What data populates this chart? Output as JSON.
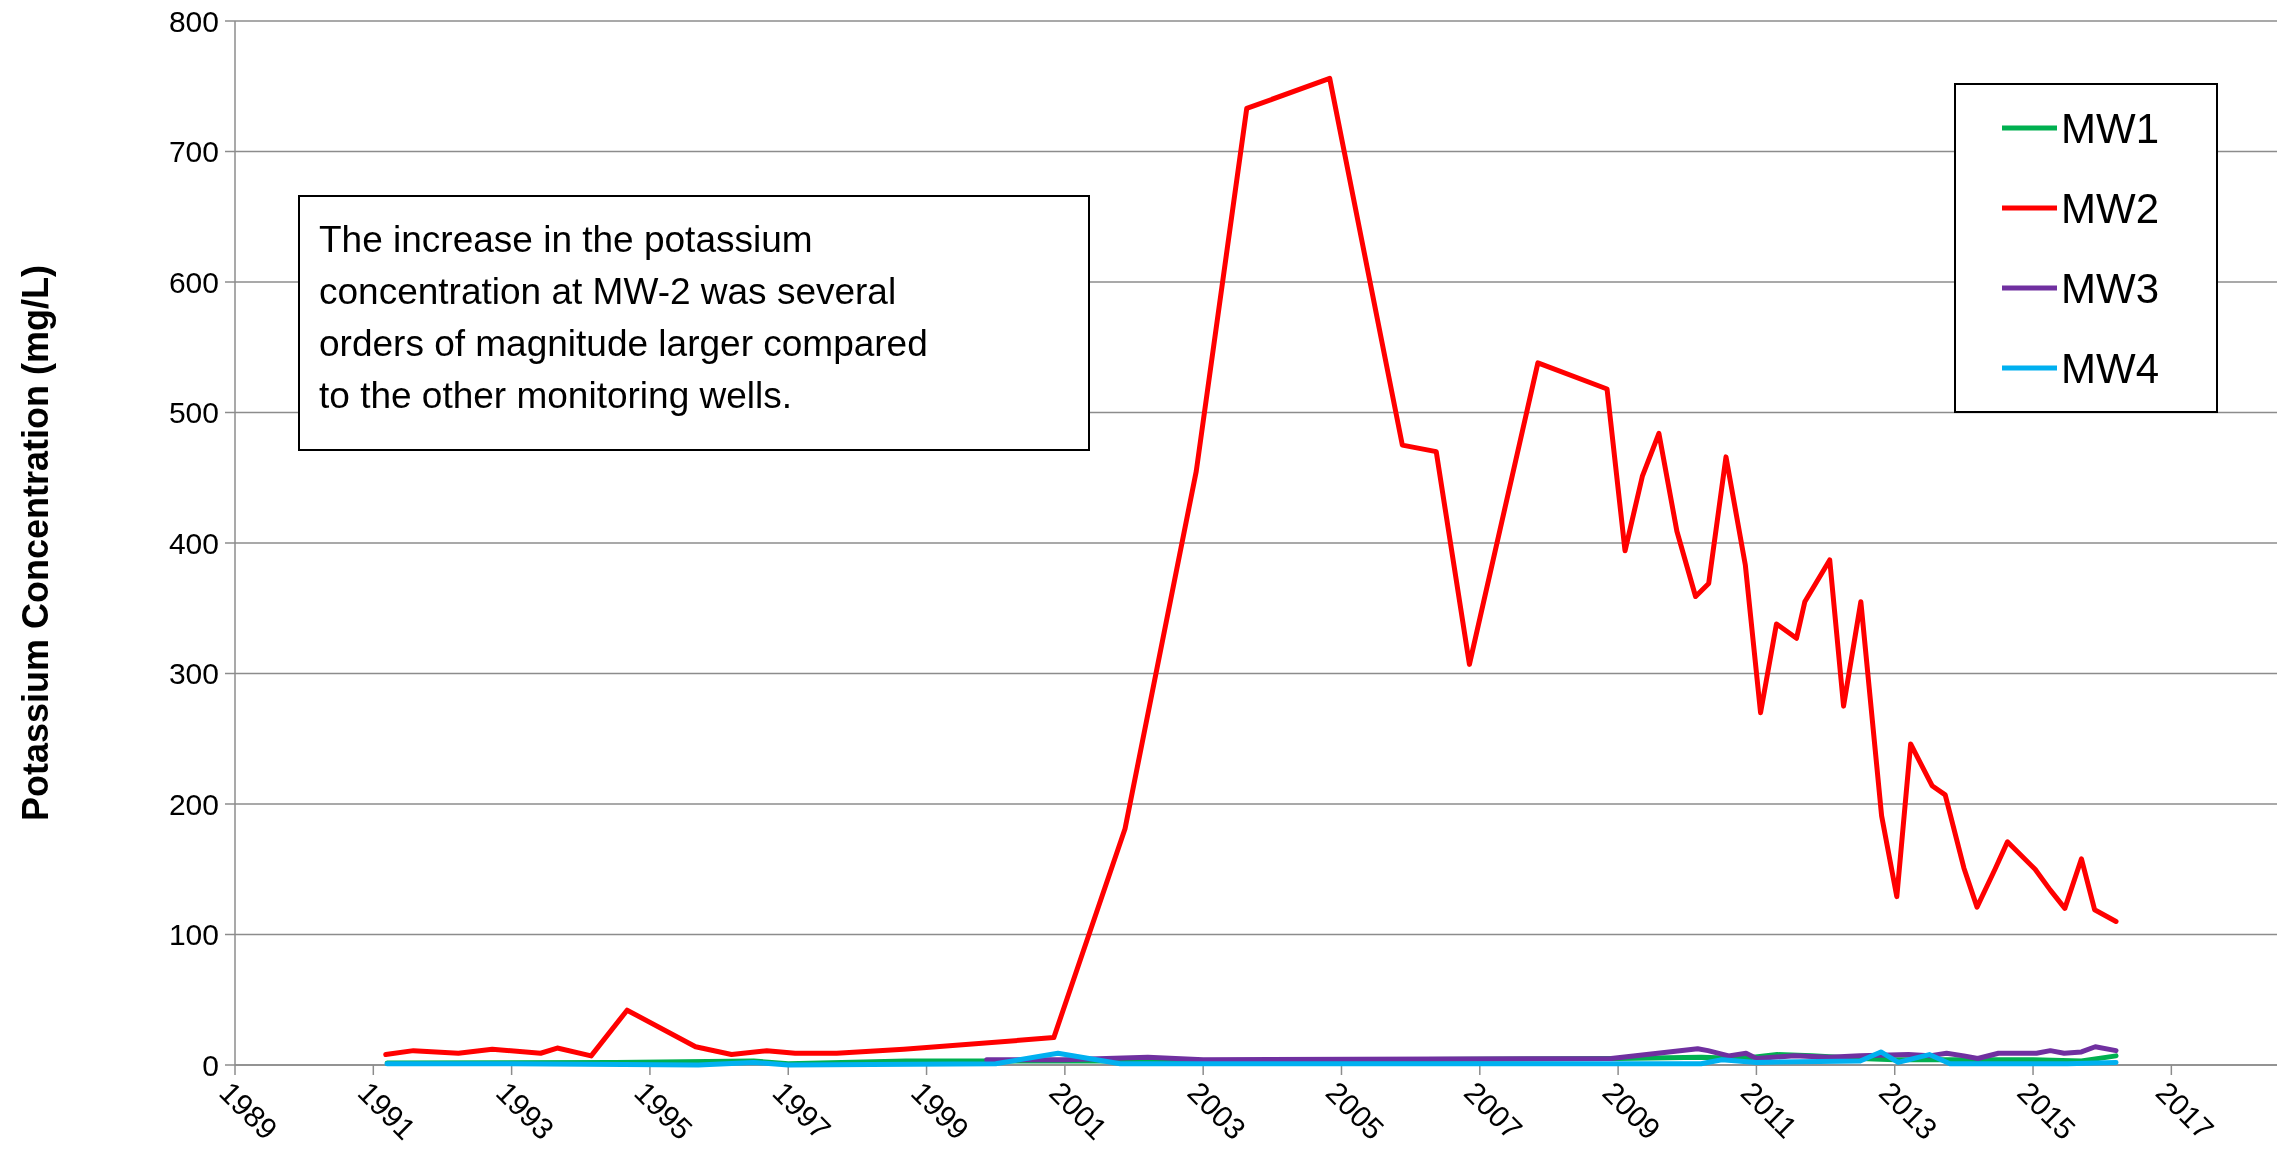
{
  "chart_data": {
    "type": "line",
    "ylabel": "Potassium Concentration (mg/L)",
    "xlim": [
      1989,
      2018.6
    ],
    "xticks": [
      1989,
      1991,
      1993,
      1995,
      1997,
      1999,
      2001,
      2003,
      2005,
      2007,
      2009,
      2011,
      2013,
      2015,
      2017
    ],
    "ylim": [
      0,
      800
    ],
    "yticks": [
      0,
      100,
      200,
      300,
      400,
      500,
      600,
      700,
      800
    ],
    "grid": "y",
    "legend": "top right",
    "marker": "none",
    "line_style": "solid",
    "annotations": [
      "The increase in the potassium concentration at MW-2 was several orders of magnitude larger compared to the other monitoring wells."
    ],
    "series": [
      {
        "name": "MW1",
        "color": "#00b050",
        "x": [
          1991.2,
          1994.5,
          1996.5,
          1997,
          1998.7,
          2000,
          2002,
          2009,
          2010.2,
          2010.8,
          2011.3,
          2011.8,
          2012.5,
          2013,
          2014,
          2015,
          2015.7,
          2016.2
        ],
        "values": [
          1.5,
          2,
          3,
          1,
          3,
          3,
          3,
          5,
          6,
          5,
          8,
          7,
          5,
          4,
          4,
          4,
          3,
          7
        ]
      },
      {
        "name": "MW2",
        "color": "#ff0000",
        "x": [
          1991.18,
          1991.58,
          1992.23,
          1992.72,
          1993.42,
          1993.66,
          1994.15,
          1994.67,
          1995.66,
          1996.18,
          1996.69,
          1997.1,
          1997.7,
          1998.67,
          2000.84,
          2001.87,
          2002.9,
          2003.63,
          2004.83,
          2005.88,
          2006.37,
          2006.85,
          2007.84,
          2008.84,
          2009.1,
          2009.35,
          2009.59,
          2009.85,
          2010.12,
          2010.31,
          2010.56,
          2010.84,
          2011.06,
          2011.29,
          2011.58,
          2011.7,
          2012.06,
          2012.26,
          2012.51,
          2012.81,
          2013.03,
          2013.23,
          2013.54,
          2013.73,
          2014.0,
          2014.19,
          2014.45,
          2014.63,
          2015.03,
          2015.25,
          2015.46,
          2015.7,
          2015.89,
          2016.2
        ],
        "values": [
          8,
          11,
          9,
          12,
          9,
          13,
          7,
          42,
          14,
          8,
          11,
          9,
          9,
          12,
          21,
          181,
          455,
          733,
          756,
          475,
          470,
          307,
          538,
          518,
          394,
          451,
          484,
          409,
          359,
          369,
          466,
          383,
          270,
          338,
          327,
          355,
          387,
          275,
          355,
          191,
          129,
          246,
          214,
          207,
          151,
          121,
          150,
          171,
          150,
          134,
          120,
          158,
          119,
          110
        ]
      },
      {
        "name": "MW3",
        "color": "#7030a0",
        "x": [
          1999.87,
          2001,
          2002.2,
          2003,
          2008.9,
          2010.15,
          2010.3,
          2010.6,
          2010.85,
          2011,
          2011.55,
          2012.05,
          2012.5,
          2013.2,
          2013.5,
          2013.75,
          2014,
          2014.2,
          2014.5,
          2015.05,
          2015.25,
          2015.45,
          2015.7,
          2015.9,
          2016.2
        ],
        "values": [
          4,
          4,
          6,
          4,
          5,
          12.5,
          11,
          7,
          9,
          5,
          7,
          6,
          7,
          8,
          7,
          9,
          7,
          5,
          9,
          9,
          11,
          9,
          10,
          14,
          11
        ]
      },
      {
        "name": "MW4",
        "color": "#00b0f0",
        "x": [
          1991.2,
          1993,
          1995.7,
          1996.5,
          1997,
          2000,
          2000.9,
          2001.8,
          2005,
          2009,
          2010.2,
          2010.5,
          2011,
          2012.5,
          2012.8,
          2013.05,
          2013.5,
          2013.8,
          2015.5,
          2016.2
        ],
        "values": [
          1,
          1,
          0,
          2,
          0,
          1,
          9,
          1,
          1,
          1,
          1,
          4,
          2,
          3,
          10,
          2,
          8,
          1,
          1,
          2
        ]
      }
    ]
  }
}
